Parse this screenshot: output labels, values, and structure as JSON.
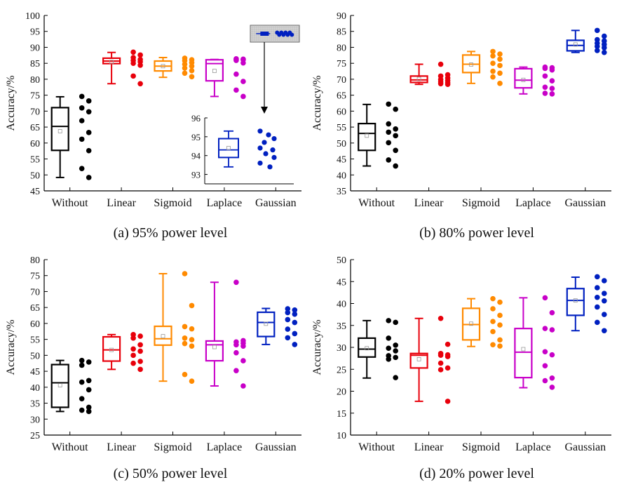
{
  "series_colors": {
    "Without": "#000000",
    "Linear": "#e8000b",
    "Sigmoid": "#ff8a00",
    "Laplace": "#c800c8",
    "Gaussian": "#0020c0"
  },
  "chart_data": [
    {
      "type": "box",
      "caption": "(a) 95% power level",
      "ylabel": "Accuracy/%",
      "ylim": [
        45,
        100
      ],
      "ytick_step": 5,
      "categories": [
        "Without",
        "Linear",
        "Sigmoid",
        "Laplace",
        "Gaussian"
      ],
      "boxes": [
        {
          "name": "Without",
          "min": 49.2,
          "q1": 57.7,
          "median": 65.2,
          "q3": 71.1,
          "max": 74.5,
          "mean": 63.7,
          "points": [
            74.6,
            73.2,
            71.0,
            69.8,
            67.0,
            63.3,
            61.2,
            57.6,
            52.0,
            49.2
          ]
        },
        {
          "name": "Linear",
          "min": 78.6,
          "q1": 84.9,
          "median": 85.7,
          "q3": 86.6,
          "max": 88.4,
          "mean": 85.4,
          "points": [
            88.5,
            87.6,
            86.8,
            86.2,
            85.9,
            85.5,
            85.0,
            84.4,
            81.0,
            78.6
          ]
        },
        {
          "name": "Sigmoid",
          "min": 80.6,
          "q1": 82.6,
          "median": 84.1,
          "q3": 85.7,
          "max": 86.8,
          "mean": 84.1,
          "points": [
            86.6,
            86.1,
            85.8,
            85.2,
            84.7,
            84.1,
            83.5,
            82.7,
            81.9,
            80.8
          ]
        },
        {
          "name": "Laplace",
          "min": 74.6,
          "q1": 79.5,
          "median": 84.9,
          "q3": 86.1,
          "max": 86.2,
          "mean": 82.6,
          "points": [
            86.4,
            86.3,
            86.2,
            86.1,
            85.9,
            85.1,
            81.6,
            79.3,
            76.6,
            74.6
          ]
        },
        {
          "name": "Gaussian",
          "min": 93.4,
          "q1": 93.9,
          "median": 94.3,
          "q3": 94.9,
          "max": 95.3,
          "mean": 94.4,
          "points": [
            95.3,
            95.1,
            94.9,
            94.7,
            94.4,
            94.3,
            94.1,
            93.9,
            93.6,
            93.4
          ]
        }
      ],
      "inset": {
        "category": "Gaussian",
        "ylim": [
          92.5,
          96
        ],
        "yticks": [
          93,
          94,
          95,
          96
        ]
      }
    },
    {
      "type": "box",
      "caption": "(b) 80% power level",
      "ylabel": "Accuracy/%",
      "ylim": [
        35,
        90
      ],
      "ytick_step": 5,
      "categories": [
        "Without",
        "Linear",
        "Sigmoid",
        "Laplace",
        "Gaussian"
      ],
      "boxes": [
        {
          "name": "Without",
          "min": 42.8,
          "q1": 47.7,
          "median": 53.0,
          "q3": 56.1,
          "max": 62.1,
          "mean": 52.3,
          "points": [
            62.2,
            60.6,
            56.0,
            54.4,
            53.4,
            52.3,
            50.1,
            47.7,
            44.7,
            42.8
          ]
        },
        {
          "name": "Linear",
          "min": 68.4,
          "q1": 69.0,
          "median": 69.8,
          "q3": 71.0,
          "max": 74.7,
          "mean": 70.1,
          "points": [
            74.7,
            71.4,
            71.0,
            70.4,
            69.9,
            69.6,
            69.2,
            68.9,
            68.6,
            68.4
          ]
        },
        {
          "name": "Sigmoid",
          "min": 68.7,
          "q1": 72.1,
          "median": 74.7,
          "q3": 77.6,
          "max": 78.7,
          "mean": 74.6,
          "points": [
            78.7,
            77.9,
            77.3,
            76.3,
            75.0,
            74.3,
            72.5,
            71.9,
            70.7,
            68.7
          ]
        },
        {
          "name": "Laplace",
          "min": 65.4,
          "q1": 67.3,
          "median": 69.7,
          "q3": 73.3,
          "max": 73.8,
          "mean": 69.8,
          "points": [
            73.8,
            73.6,
            73.4,
            72.9,
            71.0,
            69.5,
            67.5,
            67.1,
            65.6,
            65.4
          ]
        },
        {
          "name": "Gaussian",
          "min": 78.4,
          "q1": 78.9,
          "median": 80.6,
          "q3": 82.2,
          "max": 85.3,
          "mean": 80.9,
          "points": [
            85.3,
            83.5,
            82.4,
            82.0,
            81.3,
            80.9,
            80.3,
            79.9,
            79.0,
            78.4
          ]
        }
      ]
    },
    {
      "type": "box",
      "caption": "(c) 50% power level",
      "ylabel": "Accuracy/%",
      "ylim": [
        25,
        80
      ],
      "ytick_step": 5,
      "categories": [
        "Without",
        "Linear",
        "Sigmoid",
        "Laplace",
        "Gaussian"
      ],
      "boxes": [
        {
          "name": "Without",
          "min": 32.4,
          "q1": 33.7,
          "median": 41.4,
          "q3": 47.1,
          "max": 48.4,
          "mean": 40.6,
          "points": [
            48.4,
            47.9,
            46.9,
            42.1,
            41.6,
            39.2,
            36.4,
            33.7,
            32.8,
            32.4
          ]
        },
        {
          "name": "Linear",
          "min": 45.6,
          "q1": 48.2,
          "median": 51.7,
          "q3": 55.8,
          "max": 56.5,
          "mean": 51.7,
          "points": [
            56.5,
            56.0,
            55.4,
            53.3,
            52.0,
            51.3,
            50.0,
            48.1,
            47.5,
            45.6
          ]
        },
        {
          "name": "Sigmoid",
          "min": 41.9,
          "q1": 53.2,
          "median": 55.2,
          "q3": 59.1,
          "max": 75.6,
          "mean": 56.0,
          "points": [
            75.6,
            65.6,
            59.0,
            58.3,
            55.4,
            54.9,
            53.7,
            52.9,
            44.0,
            41.9
          ]
        },
        {
          "name": "Laplace",
          "min": 40.4,
          "q1": 48.3,
          "median": 53.3,
          "q3": 54.5,
          "max": 72.9,
          "mean": 52.6,
          "points": [
            72.9,
            54.6,
            54.2,
            53.8,
            53.3,
            52.9,
            50.8,
            48.3,
            45.2,
            40.4
          ]
        },
        {
          "name": "Gaussian",
          "min": 53.4,
          "q1": 55.9,
          "median": 60.3,
          "q3": 63.5,
          "max": 64.7,
          "mean": 59.9,
          "points": [
            64.6,
            64.2,
            63.4,
            62.9,
            61.2,
            60.3,
            58.2,
            56.8,
            55.5,
            53.4
          ]
        }
      ]
    },
    {
      "type": "box",
      "caption": "(d) 20% power level",
      "ylabel": "Accuracy/%",
      "ylim": [
        10,
        50
      ],
      "ytick_step": 5,
      "categories": [
        "Without",
        "Linear",
        "Sigmoid",
        "Laplace",
        "Gaussian"
      ],
      "boxes": [
        {
          "name": "Without",
          "min": 23.0,
          "q1": 27.8,
          "median": 29.6,
          "q3": 32.1,
          "max": 36.1,
          "mean": 29.8,
          "points": [
            36.1,
            35.7,
            32.1,
            30.5,
            29.8,
            29.2,
            28.1,
            27.7,
            27.3,
            23.1
          ]
        },
        {
          "name": "Linear",
          "min": 17.7,
          "q1": 25.3,
          "median": 28.2,
          "q3": 28.6,
          "max": 36.6,
          "mean": 27.3,
          "points": [
            36.6,
            30.7,
            28.6,
            28.3,
            28.2,
            27.9,
            26.4,
            25.3,
            24.9,
            17.7
          ]
        },
        {
          "name": "Sigmoid",
          "min": 30.2,
          "q1": 31.7,
          "median": 35.2,
          "q3": 38.9,
          "max": 41.1,
          "mean": 35.4,
          "points": [
            41.1,
            40.3,
            38.8,
            37.3,
            35.9,
            35.1,
            33.6,
            31.7,
            30.6,
            30.3
          ]
        },
        {
          "name": "Laplace",
          "min": 20.8,
          "q1": 23.1,
          "median": 28.9,
          "q3": 34.3,
          "max": 41.3,
          "mean": 29.6,
          "points": [
            41.3,
            37.9,
            34.3,
            34.0,
            29.0,
            28.3,
            25.8,
            23.0,
            22.4,
            20.9
          ]
        },
        {
          "name": "Gaussian",
          "min": 33.8,
          "q1": 37.3,
          "median": 40.7,
          "q3": 43.4,
          "max": 46.0,
          "mean": 40.7,
          "points": [
            46.1,
            45.2,
            43.6,
            42.3,
            41.4,
            40.6,
            39.2,
            37.5,
            35.7,
            33.8
          ]
        }
      ]
    }
  ]
}
